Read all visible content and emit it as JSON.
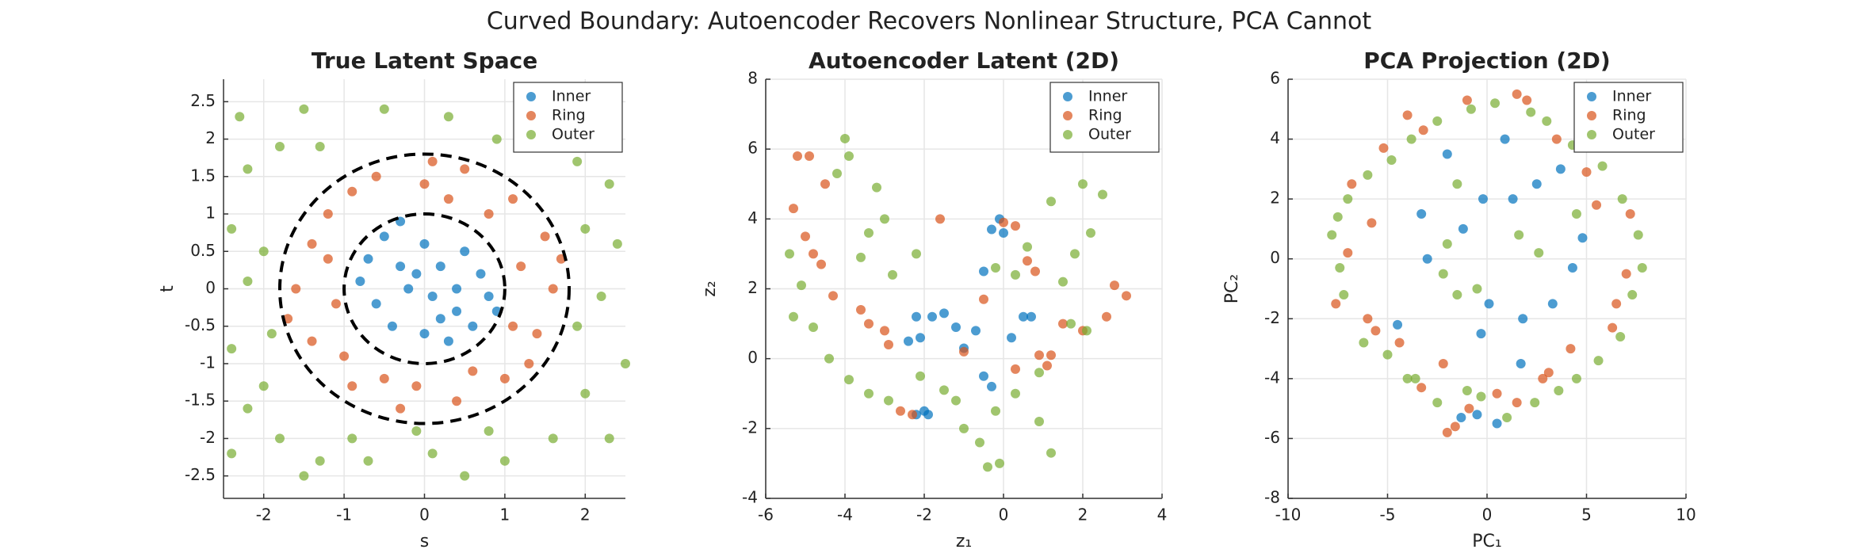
{
  "title": "Curved Boundary: Autoencoder Recovers Nonlinear Structure, PCA Cannot",
  "chart_data": [
    {
      "type": "scatter",
      "title": "True Latent Space",
      "xlabel": "s",
      "ylabel": "t",
      "xlim": [
        -2.5,
        2.5
      ],
      "ylim": [
        -2.8,
        2.8
      ],
      "xticks": [
        -2,
        -1,
        0,
        1,
        2
      ],
      "yticks": [
        -2.5,
        -2,
        -1.5,
        -1,
        -0.5,
        0,
        0.5,
        1,
        1.5,
        2,
        2.5
      ],
      "grid": true,
      "legend": "upper right",
      "circles": [
        1,
        1.8
      ],
      "series": [
        {
          "name": "Inner",
          "color": "#0072bd",
          "x": [
            -0.5,
            -0.3,
            0.0,
            0.2,
            0.5,
            0.7,
            -0.8,
            -0.6,
            -0.2,
            0.1,
            0.4,
            0.8,
            -0.4,
            0.0,
            0.3,
            0.6,
            -0.7,
            -0.1,
            0.4,
            0.9,
            -0.3,
            0.2
          ],
          "values": [
            0.7,
            0.9,
            0.6,
            0.3,
            0.5,
            0.2,
            0.1,
            -0.2,
            0.0,
            -0.1,
            -0.3,
            -0.1,
            -0.5,
            -0.6,
            -0.7,
            -0.5,
            0.4,
            0.2,
            0.0,
            -0.3,
            0.3,
            -0.4
          ]
        },
        {
          "name": "Ring",
          "color": "#d95319",
          "x": [
            -1.2,
            -0.6,
            0.0,
            0.5,
            1.1,
            1.5,
            1.6,
            1.4,
            1.0,
            0.4,
            -0.3,
            -0.9,
            -1.4,
            -1.6,
            -1.4,
            -0.9,
            0.3,
            1.2,
            1.1,
            -1.1,
            -1.2,
            0.8,
            -0.5,
            0.6,
            1.7,
            -1.7,
            0.1,
            -0.1,
            1.3,
            -1.0
          ],
          "values": [
            1.0,
            1.5,
            1.4,
            1.6,
            1.2,
            0.7,
            0.0,
            -0.6,
            -1.2,
            -1.5,
            -1.6,
            -1.3,
            -0.7,
            0.0,
            0.6,
            1.3,
            1.2,
            0.3,
            -0.5,
            -0.2,
            0.4,
            1.0,
            -1.2,
            -1.1,
            0.4,
            -0.4,
            1.7,
            -1.3,
            -1.0,
            -0.9
          ]
        },
        {
          "name": "Outer",
          "color": "#77ac30",
          "x": [
            -2.3,
            -1.5,
            -0.5,
            0.3,
            1.2,
            2.0,
            -2.2,
            -1.8,
            2.3,
            1.9,
            -2.4,
            2.4,
            -2.2,
            2.2,
            -2.4,
            2.5,
            -2.0,
            2.0,
            -2.2,
            1.6,
            -1.8,
            -1.3,
            -0.7,
            0.1,
            0.5,
            1.0,
            2.3,
            -1.3,
            0.9,
            -2.0,
            2.0,
            -1.9,
            1.9,
            -0.9,
            0.8,
            -2.4,
            2.4,
            -0.1,
            -1.5,
            1.4
          ],
          "values": [
            2.3,
            2.4,
            2.4,
            2.3,
            2.4,
            2.2,
            1.6,
            1.9,
            1.4,
            1.7,
            0.8,
            0.6,
            0.1,
            -0.1,
            -0.8,
            -1.0,
            -1.3,
            -1.4,
            -1.6,
            -2.0,
            -2.0,
            -2.3,
            -2.3,
            -2.2,
            -2.5,
            -2.3,
            -2.0,
            1.9,
            2.0,
            0.5,
            0.8,
            -0.6,
            -0.5,
            -2.0,
            -1.9,
            -2.2,
            2.0,
            -1.9,
            -2.5,
            1.9
          ]
        }
      ]
    },
    {
      "type": "scatter",
      "title": "Autoencoder Latent (2D)",
      "xlabel": "z₁",
      "ylabel": "z₂",
      "xlim": [
        -6,
        4
      ],
      "ylim": [
        -4,
        8
      ],
      "xticks": [
        -6,
        -4,
        -2,
        0,
        2,
        4
      ],
      "yticks": [
        -4,
        -2,
        0,
        2,
        4,
        6,
        8
      ],
      "grid": true,
      "legend": "upper right",
      "series": [
        {
          "name": "Inner",
          "color": "#0072bd",
          "x": [
            -2.2,
            -2.0,
            -1.9,
            -2.4,
            -2.1,
            -1.8,
            -1.5,
            -1.2,
            -1.0,
            -0.7,
            -0.5,
            -0.3,
            0.2,
            0.5,
            0.7,
            -0.3,
            -0.1,
            0.0,
            -0.5,
            -2.2
          ],
          "values": [
            -1.6,
            -1.5,
            -1.6,
            0.5,
            0.6,
            1.2,
            1.3,
            0.9,
            0.3,
            0.8,
            -0.5,
            -0.8,
            0.6,
            1.2,
            1.2,
            3.7,
            4.0,
            3.6,
            2.5,
            1.2
          ]
        },
        {
          "name": "Ring",
          "color": "#d95319",
          "x": [
            -5.2,
            -4.9,
            -4.5,
            -5.3,
            -5.0,
            -4.6,
            -4.3,
            -3.4,
            -2.9,
            -2.3,
            -2.6,
            -1.6,
            0.0,
            0.3,
            0.6,
            0.8,
            0.3,
            0.9,
            1.2,
            1.5,
            2.0,
            2.6,
            2.8,
            3.1,
            -0.5,
            -3.6,
            -3.0,
            -4.8,
            -1.0,
            1.1
          ],
          "values": [
            5.8,
            5.8,
            5.0,
            4.3,
            3.5,
            2.7,
            1.8,
            1.0,
            0.4,
            -1.6,
            -1.5,
            4.0,
            3.9,
            3.8,
            2.8,
            2.5,
            -0.3,
            0.1,
            0.1,
            1.0,
            0.8,
            1.2,
            2.1,
            1.8,
            1.7,
            1.4,
            0.8,
            3.0,
            0.2,
            -0.2
          ]
        },
        {
          "name": "Outer",
          "color": "#77ac30",
          "x": [
            -4.0,
            -3.9,
            -4.2,
            -3.2,
            -3.0,
            -3.4,
            -5.4,
            -5.1,
            -5.3,
            -4.8,
            -4.4,
            -3.9,
            -3.4,
            -2.9,
            -2.1,
            -1.5,
            -1.2,
            -1.0,
            -0.6,
            -0.4,
            -0.1,
            -0.2,
            0.3,
            0.9,
            1.2,
            0.9,
            1.7,
            2.1,
            1.5,
            1.8,
            2.2,
            2.5,
            2.0,
            1.2,
            0.6,
            0.3,
            -0.2,
            -3.6,
            -2.2,
            -2.8
          ],
          "values": [
            6.3,
            5.8,
            5.3,
            4.9,
            4.0,
            3.6,
            3.0,
            2.1,
            1.2,
            0.9,
            0.0,
            -0.6,
            -1.0,
            -1.2,
            -0.5,
            -0.9,
            -1.2,
            -2.0,
            -2.4,
            -3.1,
            -3.0,
            -1.5,
            -1.0,
            -1.8,
            -2.7,
            -0.4,
            1.0,
            0.8,
            2.2,
            3.0,
            3.6,
            4.7,
            5.0,
            4.5,
            3.2,
            2.4,
            2.6,
            2.9,
            3.0,
            2.4
          ]
        }
      ]
    },
    {
      "type": "scatter",
      "title": "PCA Projection (2D)",
      "xlabel": "PC₁",
      "ylabel": "PC₂",
      "xlim": [
        -10,
        10
      ],
      "ylim": [
        -8,
        6
      ],
      "xticks": [
        -10,
        -5,
        0,
        5,
        10
      ],
      "yticks": [
        -8,
        -6,
        -4,
        -2,
        0,
        2,
        4,
        6
      ],
      "grid": true,
      "legend": "upper right",
      "series": [
        {
          "name": "Inner",
          "color": "#0072bd",
          "x": [
            -2.0,
            -0.2,
            0.9,
            1.3,
            2.5,
            3.7,
            -3.3,
            -1.2,
            0.1,
            -0.3,
            1.8,
            3.3,
            4.8,
            4.3,
            -3.0,
            -0.5,
            0.5,
            -1.3,
            1.7,
            -4.5
          ],
          "values": [
            3.5,
            2.0,
            4.0,
            2.0,
            2.5,
            3.0,
            1.5,
            1.0,
            -1.5,
            -2.5,
            -2.0,
            -1.5,
            0.7,
            -0.3,
            0.0,
            -5.2,
            -5.5,
            -5.3,
            -3.5,
            -2.2
          ]
        },
        {
          "name": "Ring",
          "color": "#d95319",
          "x": [
            -6.8,
            -5.2,
            -3.2,
            -1.0,
            1.5,
            3.5,
            5.0,
            7.2,
            7.0,
            6.3,
            4.2,
            3.1,
            1.5,
            -0.9,
            -2.0,
            -3.3,
            -4.4,
            -5.6,
            -7.0,
            -7.6,
            -5.8,
            -2.2,
            5.5,
            2.0,
            -4.0,
            6.5,
            -6.0,
            0.5,
            -1.6,
            2.8
          ],
          "values": [
            2.5,
            3.7,
            4.3,
            5.3,
            5.5,
            4.0,
            2.9,
            1.5,
            -0.5,
            -2.3,
            -3.0,
            -3.8,
            -4.8,
            -5.0,
            -5.8,
            -4.3,
            -2.8,
            -2.4,
            0.2,
            -1.5,
            1.2,
            -3.5,
            1.8,
            5.3,
            4.8,
            -1.5,
            -2.0,
            -4.5,
            -5.6,
            -4.0
          ]
        },
        {
          "name": "Outer",
          "color": "#77ac30",
          "x": [
            -7.8,
            -7.5,
            -7.0,
            -6.0,
            -4.8,
            -3.8,
            -2.5,
            -0.8,
            0.4,
            2.2,
            3.0,
            4.3,
            5.8,
            6.8,
            7.6,
            7.8,
            7.3,
            6.7,
            5.6,
            4.5,
            3.6,
            2.4,
            1.0,
            -0.3,
            -1.0,
            -2.5,
            -3.6,
            -5.0,
            -6.2,
            -7.2,
            -7.4,
            -1.5,
            -2.2,
            -2.0,
            -1.5,
            1.6,
            2.6,
            -0.5,
            4.5,
            -4.0
          ],
          "values": [
            0.8,
            1.4,
            2.0,
            2.8,
            3.3,
            4.0,
            4.6,
            5.0,
            5.2,
            4.9,
            4.6,
            3.8,
            3.1,
            2.0,
            0.8,
            -0.3,
            -1.2,
            -2.6,
            -3.4,
            -4.0,
            -4.4,
            -4.8,
            -5.3,
            -4.6,
            -4.4,
            -4.8,
            -4.0,
            -3.2,
            -2.8,
            -1.2,
            -0.3,
            -1.2,
            -0.5,
            0.5,
            2.5,
            0.8,
            0.2,
            -1.0,
            1.5,
            -4.0
          ]
        }
      ]
    }
  ]
}
